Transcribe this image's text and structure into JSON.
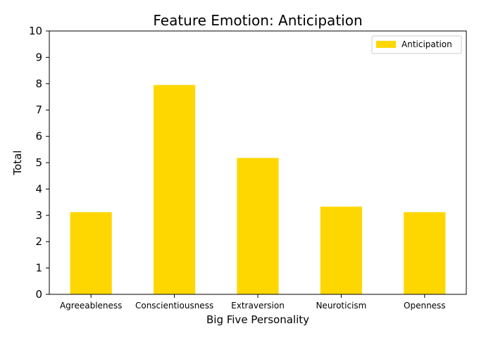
{
  "chart_data": {
    "type": "bar",
    "title": "Feature Emotion: Anticipation",
    "xlabel": "Big Five Personality",
    "ylabel": "Total",
    "categories": [
      "Agreeableness",
      "Conscientiousness",
      "Extraversion",
      "Neuroticism",
      "Openness"
    ],
    "series": [
      {
        "name": "Anticipation",
        "values": [
          3.12,
          7.95,
          5.18,
          3.33,
          3.12
        ],
        "color": "#FFD700"
      }
    ],
    "ylim": [
      0,
      10
    ],
    "yticks": [
      0,
      1,
      2,
      3,
      4,
      5,
      6,
      7,
      8,
      9,
      10
    ],
    "grid": false,
    "legend_position": "top-right"
  }
}
